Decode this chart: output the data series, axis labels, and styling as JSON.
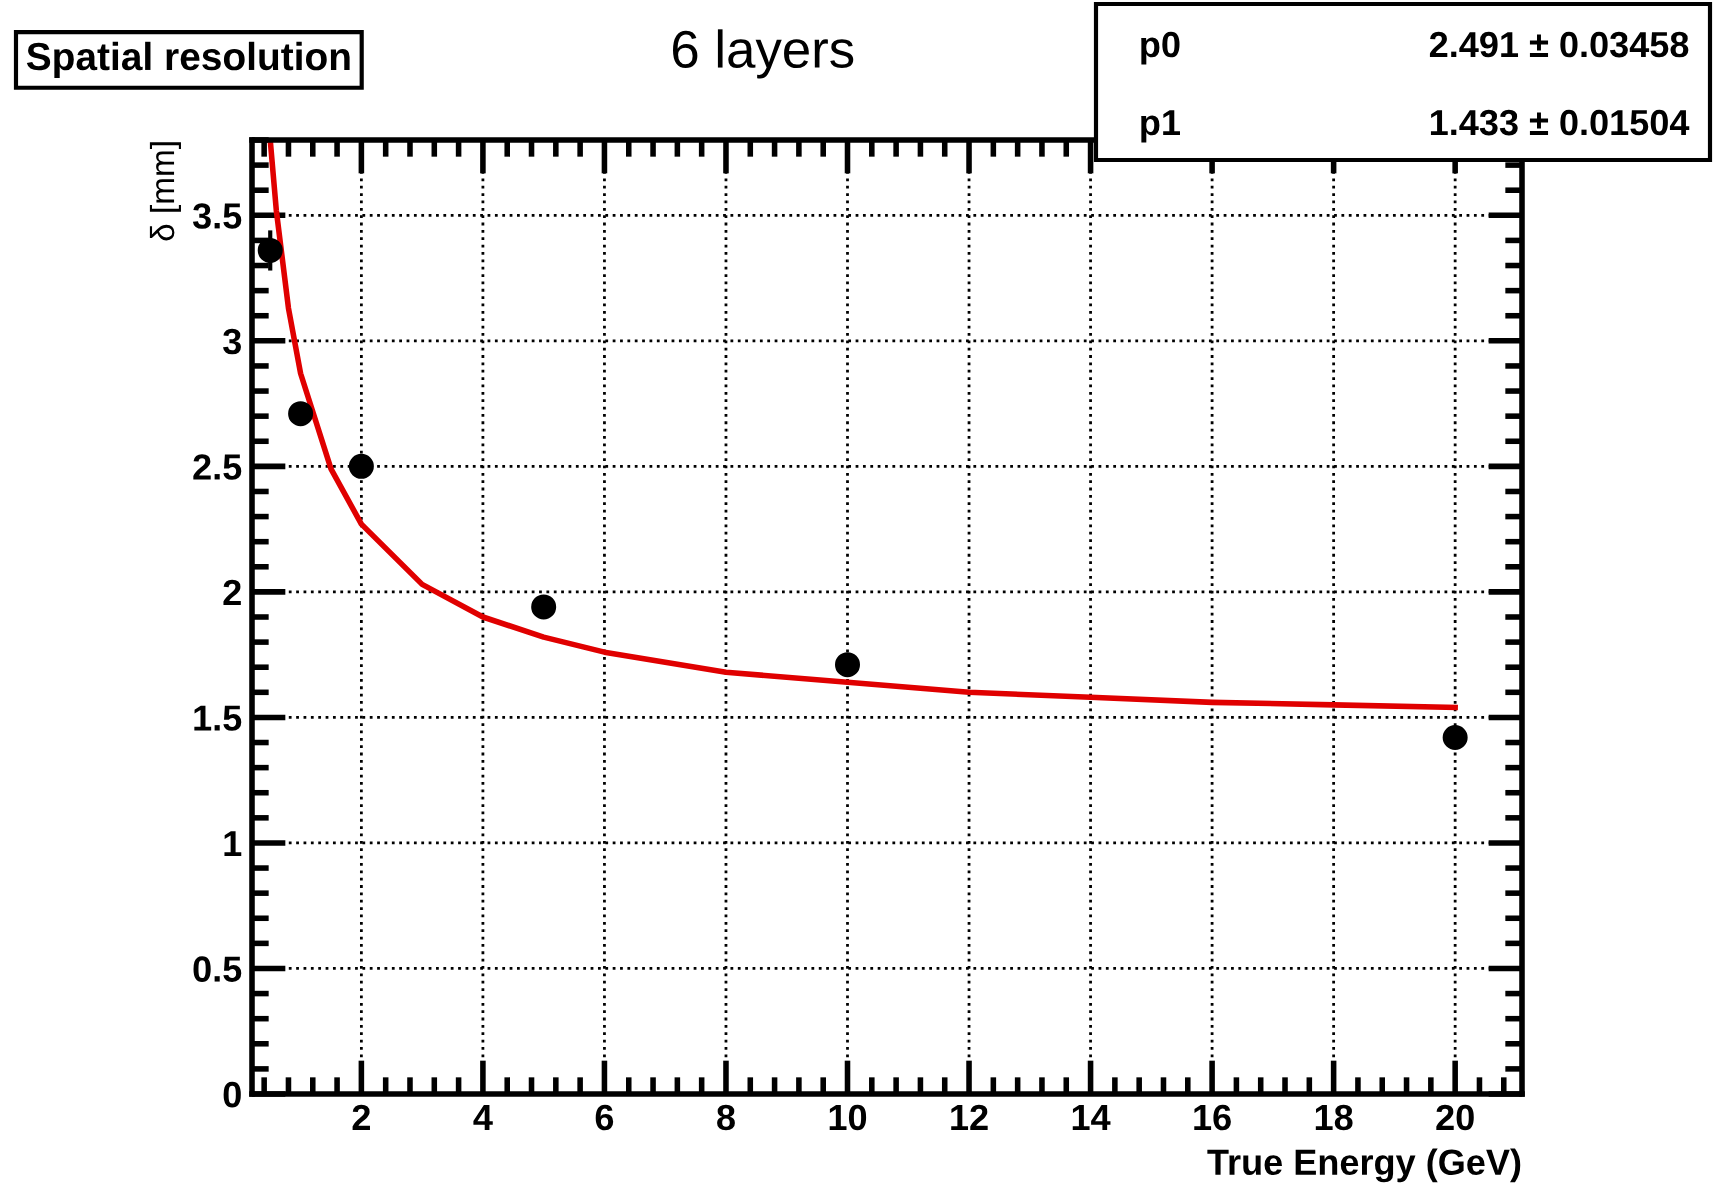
{
  "chart_data": {
    "type": "scatter",
    "title": "Spatial resolution",
    "subtitle": "6 layers",
    "xlabel": "True Energy (GeV)",
    "ylabel": "δ [mm]",
    "xlim": [
      0.2,
      21.1
    ],
    "xticks": [
      2,
      4,
      6,
      8,
      10,
      12,
      14,
      16,
      18,
      20
    ],
    "ylim": [
      0,
      3.8
    ],
    "yticks": [
      0,
      0.5,
      1,
      1.5,
      2,
      2.5,
      3,
      3.5
    ],
    "grid": true,
    "series": [
      {
        "color": "#000000",
        "marker": "circle",
        "x": [
          0.5,
          1,
          2,
          5,
          10,
          20
        ],
        "values": [
          3.36,
          2.71,
          2.5,
          1.94,
          1.71,
          1.42
        ],
        "errors": [
          0.08,
          null,
          null,
          null,
          null,
          null
        ]
      },
      {
        "type": "line",
        "color": "#e00000",
        "marker": "none",
        "line_style": "solid",
        "x": [
          0.5,
          0.6,
          0.8,
          1,
          1.5,
          2,
          3,
          4,
          5,
          6,
          8,
          10,
          12,
          14,
          16,
          18,
          20
        ],
        "values": [
          3.8,
          3.52,
          3.13,
          2.87,
          2.49,
          2.27,
          2.03,
          1.9,
          1.82,
          1.76,
          1.68,
          1.64,
          1.6,
          1.58,
          1.56,
          1.55,
          1.54
        ]
      }
    ],
    "annotations": [
      "p0",
      "2.491 ± 0.03458",
      "p1",
      "1.433 ± 0.01504"
    ]
  }
}
